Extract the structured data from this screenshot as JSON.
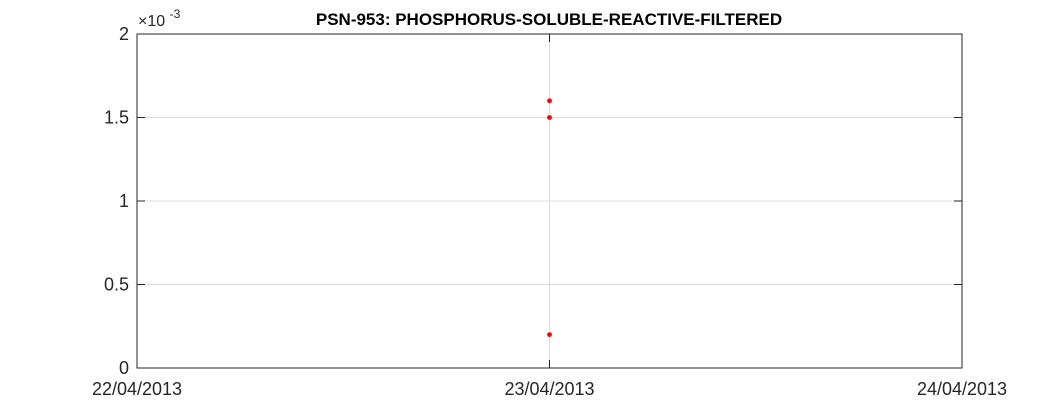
{
  "chart_data": {
    "type": "scatter",
    "title": "PSN-953: PHOSPHORUS-SOLUBLE-REACTIVE-FILTERED",
    "xlabel": "",
    "ylabel": "",
    "x_ticks": [
      "22/04/2013",
      "23/04/2013",
      "24/04/2013"
    ],
    "xlim": [
      "22/04/2013",
      "24/04/2013"
    ],
    "y_ticks": [
      "0",
      "0.5",
      "1",
      "1.5",
      "2"
    ],
    "ylim": [
      0,
      0.002
    ],
    "y_exponent_base": "×10",
    "y_exponent_power": "-3",
    "grid": true,
    "series": [
      {
        "color": "#ff0000",
        "points": [
          {
            "x": "23/04/2013",
            "y": 0.0016
          },
          {
            "x": "23/04/2013",
            "y": 0.0015
          },
          {
            "x": "23/04/2013",
            "y": 0.0002
          }
        ]
      }
    ]
  }
}
